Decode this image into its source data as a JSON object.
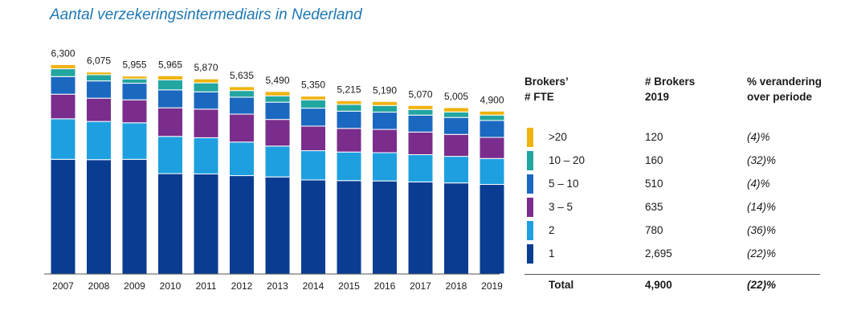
{
  "title": "Aantal verzekeringsintermediairs in Nederland",
  "chart_data": {
    "type": "bar",
    "stacked": true,
    "categories": [
      "2007",
      "2008",
      "2009",
      "2010",
      "2011",
      "2012",
      "2013",
      "2014",
      "2015",
      "2016",
      "2017",
      "2018",
      "2019"
    ],
    "totals": [
      "6,300",
      "6,075",
      "5,955",
      "5,965",
      "5,870",
      "5,635",
      "5,490",
      "5,350",
      "5,215",
      "5,190",
      "5,070",
      "5,005",
      "4,900"
    ],
    "series": [
      {
        "name": "1",
        "color": "#0a3d91",
        "values": [
          3450,
          3440,
          3450,
          3020,
          3010,
          2960,
          2920,
          2830,
          2810,
          2800,
          2770,
          2740,
          2695
        ]
      },
      {
        "name": "2",
        "color": "#1ea0e0",
        "values": [
          1220,
          1150,
          1100,
          1120,
          1090,
          1010,
          930,
          880,
          860,
          850,
          820,
          800,
          780
        ]
      },
      {
        "name": "3 – 5",
        "color": "#7a2d8c",
        "values": [
          740,
          700,
          690,
          860,
          860,
          840,
          800,
          740,
          710,
          700,
          680,
          660,
          635
        ]
      },
      {
        "name": "5 – 10",
        "color": "#1b68c0",
        "values": [
          530,
          520,
          500,
          540,
          520,
          510,
          520,
          540,
          520,
          520,
          510,
          510,
          510
        ]
      },
      {
        "name": "10 – 20",
        "color": "#22a6a0",
        "values": [
          235,
          185,
          130,
          300,
          270,
          200,
          190,
          250,
          200,
          200,
          170,
          165,
          160
        ]
      },
      {
        "name": ">20",
        "color": "#f0b30f",
        "values": [
          125,
          80,
          85,
          125,
          120,
          115,
          130,
          110,
          115,
          120,
          120,
          130,
          120
        ]
      }
    ],
    "ylim": [
      0,
      6600
    ]
  },
  "legend_table": {
    "headers": {
      "fte": [
        "Brokers’",
        "# FTE"
      ],
      "brokers": [
        "# Brokers",
        "2019"
      ],
      "pct": [
        "% verandering",
        "over periode"
      ]
    },
    "rows": [
      {
        "fte": ">20",
        "brokers": "120",
        "pct": "(4)%",
        "color": "#f0b30f"
      },
      {
        "fte": "10 – 20",
        "brokers": "160",
        "pct": "(32)%",
        "color": "#22a6a0"
      },
      {
        "fte": "5 – 10",
        "brokers": "510",
        "pct": "(4)%",
        "color": "#1b68c0"
      },
      {
        "fte": "3 – 5",
        "brokers": "635",
        "pct": "(14)%",
        "color": "#7a2d8c"
      },
      {
        "fte": "2",
        "brokers": "780",
        "pct": "(36)%",
        "color": "#1ea0e0"
      },
      {
        "fte": "1",
        "brokers": "2,695",
        "pct": "(22)%",
        "color": "#0a3d91"
      }
    ],
    "total": {
      "label": "Total",
      "brokers": "4,900",
      "pct": "(22)%"
    }
  }
}
